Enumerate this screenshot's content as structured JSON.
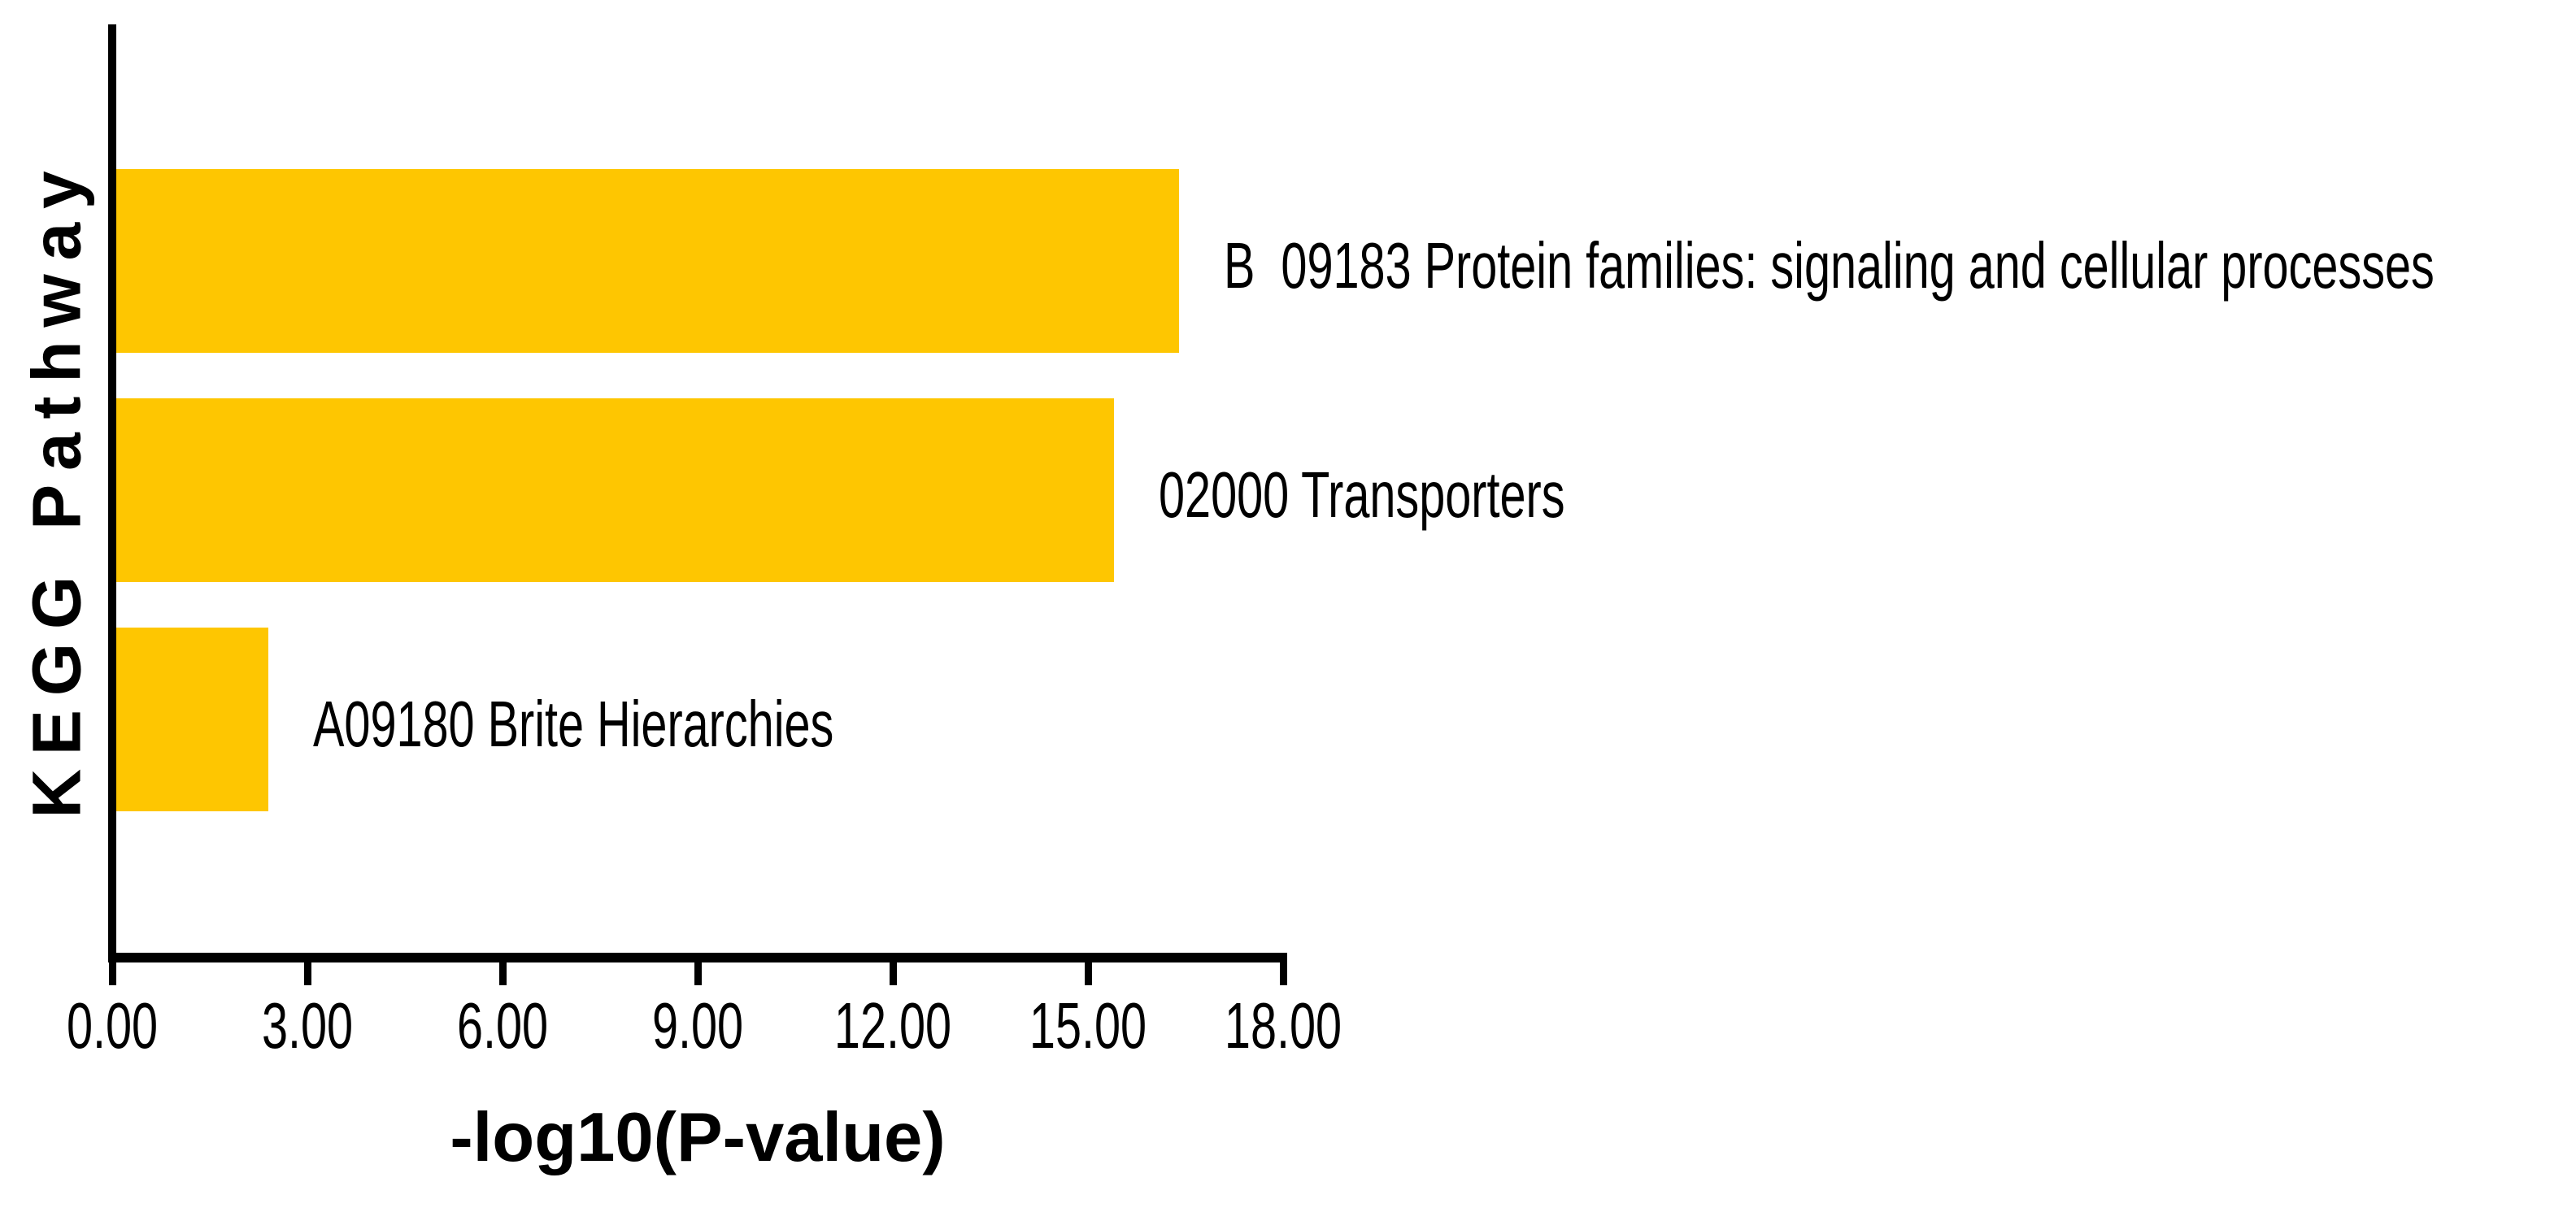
{
  "chart_data": {
    "type": "bar",
    "orientation": "horizontal",
    "title": "",
    "xlabel": "-log10(P-value)",
    "ylabel": "KEGG Pathway",
    "categories": [
      "B  09183 Protein families: signaling and cellular processes",
      "02000 Transporters",
      "A09180 Brite Hierarchies"
    ],
    "values": [
      16.4,
      15.4,
      2.4
    ],
    "xlim": [
      0,
      18
    ],
    "xticks": [
      "0.00",
      "3.00",
      "6.00",
      "9.00",
      "12.00",
      "15.00",
      "18.00"
    ],
    "bar_color": "#FEC601",
    "axis_color": "#000000",
    "grid": false,
    "legend": null
  }
}
